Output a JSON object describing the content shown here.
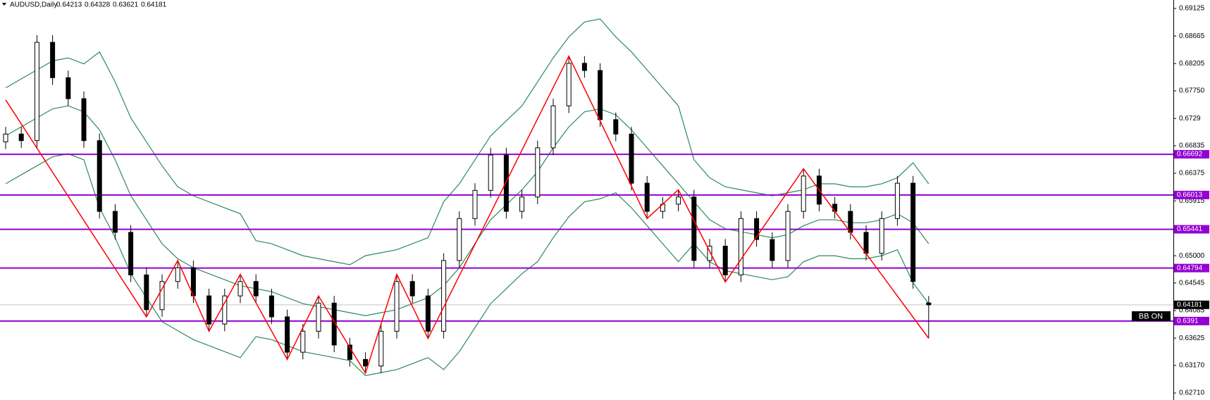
{
  "chart_data": {
    "type": "candlestick",
    "title": "AUDUSD,Daily",
    "bull_color": "#ffffff",
    "bear_color": "#000000",
    "open": [
      0.669,
      0.6703,
      0.6692,
      0.6856,
      0.6797,
      0.6762,
      0.6692,
      0.6574,
      0.6539,
      0.6468,
      0.641,
      0.6457,
      0.648,
      0.6433,
      0.6386,
      0.6433,
      0.6457,
      0.6433,
      0.6398,
      0.6339,
      0.6374,
      0.6421,
      0.6351,
      0.6327,
      0.6316,
      0.6374,
      0.6457,
      0.6433,
      0.6374,
      0.6492,
      0.6562,
      0.6609,
      0.6668,
      0.6574,
      0.6598,
      0.668,
      0.675,
      0.6821,
      0.6809,
      0.6727,
      0.6703,
      0.6621,
      0.6574,
      0.6586,
      0.6598,
      0.6492,
      0.6516,
      0.6468,
      0.6562,
      0.6527,
      0.6492,
      0.6574,
      0.6633,
      0.6586,
      0.6574,
      0.6539,
      0.6504,
      0.6562,
      0.6621,
      0.64213
    ],
    "high": [
      0.6715,
      0.6715,
      0.6868,
      0.6868,
      0.6809,
      0.6774,
      0.6704,
      0.6586,
      0.6551,
      0.648,
      0.6469,
      0.6492,
      0.6492,
      0.6445,
      0.6445,
      0.6469,
      0.6469,
      0.6445,
      0.641,
      0.6386,
      0.6433,
      0.6433,
      0.6363,
      0.6339,
      0.6386,
      0.6469,
      0.6469,
      0.6445,
      0.6504,
      0.6574,
      0.6621,
      0.668,
      0.668,
      0.661,
      0.6692,
      0.6762,
      0.6833,
      0.6833,
      0.6821,
      0.6739,
      0.6715,
      0.6633,
      0.6598,
      0.661,
      0.661,
      0.6528,
      0.6528,
      0.6574,
      0.6574,
      0.6539,
      0.6586,
      0.6645,
      0.6645,
      0.6598,
      0.6586,
      0.6551,
      0.6574,
      0.6633,
      0.6633,
      0.64328
    ],
    "low": [
      0.6678,
      0.668,
      0.668,
      0.6785,
      0.675,
      0.668,
      0.6562,
      0.6527,
      0.6456,
      0.6398,
      0.6398,
      0.6445,
      0.6421,
      0.6374,
      0.6374,
      0.6421,
      0.6421,
      0.6386,
      0.6327,
      0.6327,
      0.6362,
      0.6339,
      0.6315,
      0.6304,
      0.6304,
      0.6362,
      0.6421,
      0.6362,
      0.6362,
      0.648,
      0.655,
      0.6597,
      0.6562,
      0.6562,
      0.6586,
      0.6668,
      0.6738,
      0.6797,
      0.6715,
      0.6691,
      0.6609,
      0.6562,
      0.6562,
      0.6574,
      0.648,
      0.648,
      0.6456,
      0.6456,
      0.6515,
      0.648,
      0.648,
      0.6562,
      0.6574,
      0.6562,
      0.6527,
      0.6492,
      0.6492,
      0.655,
      0.6445,
      0.63621
    ],
    "close": [
      0.6703,
      0.6692,
      0.6856,
      0.6797,
      0.6762,
      0.6692,
      0.6574,
      0.6539,
      0.6468,
      0.641,
      0.6457,
      0.648,
      0.6433,
      0.6386,
      0.6433,
      0.6457,
      0.6433,
      0.6398,
      0.6339,
      0.6374,
      0.6421,
      0.6351,
      0.6327,
      0.6316,
      0.6374,
      0.6457,
      0.6433,
      0.6374,
      0.6492,
      0.6562,
      0.6609,
      0.6668,
      0.6574,
      0.6598,
      0.668,
      0.675,
      0.6821,
      0.6809,
      0.6727,
      0.6703,
      0.6621,
      0.6574,
      0.6586,
      0.6598,
      0.6492,
      0.6516,
      0.6468,
      0.6562,
      0.6527,
      0.6492,
      0.6574,
      0.6633,
      0.6586,
      0.6574,
      0.6539,
      0.6504,
      0.6562,
      0.6621,
      0.6457,
      0.64181
    ],
    "bands": [
      {
        "color": "#2e8b57",
        "values": [
          0.678,
          0.6795,
          0.681,
          0.6825,
          0.683,
          0.682,
          0.684,
          0.679,
          0.673,
          0.669,
          0.665,
          0.6615,
          0.66,
          0.659,
          0.658,
          0.657,
          0.6525,
          0.652,
          0.651,
          0.65,
          0.6495,
          0.649,
          0.6485,
          0.65,
          0.6505,
          0.651,
          0.652,
          0.653,
          0.659,
          0.662,
          0.666,
          0.67,
          0.6725,
          0.675,
          0.679,
          0.683,
          0.6865,
          0.689,
          0.6895,
          0.6865,
          0.684,
          0.681,
          0.678,
          0.675,
          0.666,
          0.663,
          0.6615,
          0.661,
          0.6605,
          0.66,
          0.6605,
          0.661,
          0.662,
          0.662,
          0.6615,
          0.6615,
          0.662,
          0.663,
          0.6655,
          0.662
        ]
      },
      {
        "color": "#2e8b57",
        "values": [
          0.67,
          0.6715,
          0.673,
          0.6745,
          0.675,
          0.674,
          0.671,
          0.666,
          0.66,
          0.656,
          0.652,
          0.6495,
          0.648,
          0.647,
          0.646,
          0.645,
          0.6445,
          0.644,
          0.643,
          0.642,
          0.6415,
          0.641,
          0.6405,
          0.64,
          0.6405,
          0.641,
          0.642,
          0.643,
          0.645,
          0.648,
          0.652,
          0.656,
          0.6585,
          0.661,
          0.664,
          0.668,
          0.6715,
          0.674,
          0.6745,
          0.6735,
          0.671,
          0.668,
          0.665,
          0.662,
          0.659,
          0.656,
          0.6545,
          0.654,
          0.6535,
          0.653,
          0.6535,
          0.655,
          0.656,
          0.656,
          0.6555,
          0.6555,
          0.656,
          0.657,
          0.6555,
          0.652
        ]
      },
      {
        "color": "#2e8b57",
        "values": [
          0.662,
          0.6635,
          0.665,
          0.6665,
          0.667,
          0.666,
          0.658,
          0.653,
          0.647,
          0.643,
          0.639,
          0.6375,
          0.636,
          0.635,
          0.634,
          0.633,
          0.6365,
          0.636,
          0.635,
          0.634,
          0.6335,
          0.633,
          0.6325,
          0.63,
          0.6305,
          0.631,
          0.632,
          0.633,
          0.631,
          0.634,
          0.638,
          0.642,
          0.6445,
          0.647,
          0.649,
          0.653,
          0.6565,
          0.659,
          0.6595,
          0.6605,
          0.658,
          0.655,
          0.652,
          0.649,
          0.652,
          0.649,
          0.6475,
          0.647,
          0.6465,
          0.646,
          0.6465,
          0.649,
          0.65,
          0.65,
          0.6495,
          0.6495,
          0.65,
          0.651,
          0.6455,
          0.642
        ]
      }
    ],
    "zigzag": {
      "color": "#ff0000",
      "x": [
        0,
        9,
        11,
        13,
        15,
        18,
        20,
        23,
        25,
        27,
        36,
        41,
        43,
        46,
        51,
        59
      ],
      "values": [
        0.676,
        0.6398,
        0.6492,
        0.6374,
        0.6469,
        0.6327,
        0.6433,
        0.6304,
        0.6469,
        0.6362,
        0.6833,
        0.6562,
        0.661,
        0.6456,
        0.6645,
        0.63621
      ]
    },
    "levels": [
      0.66692,
      0.66013,
      0.65441,
      0.64794,
      0.6391
    ],
    "level_color": "#9400d3",
    "indicator_label": "BB ON",
    "ylim": [
      0.62593,
      0.69266
    ],
    "yticks": [
      0.69125,
      0.68665,
      0.68205,
      {
        "value": 0.6775,
        "label": "0.67750"
      },
      0.6729,
      0.66835,
      0.66375,
      0.65915,
      {
        "value": 0.65,
        "label": "0.65000"
      },
      0.64545,
      0.64085,
      0.63625,
      {
        "value": 0.6317,
        "label": "0.63170"
      },
      {
        "value": 0.6271,
        "label": "0.62710"
      }
    ]
  }
}
